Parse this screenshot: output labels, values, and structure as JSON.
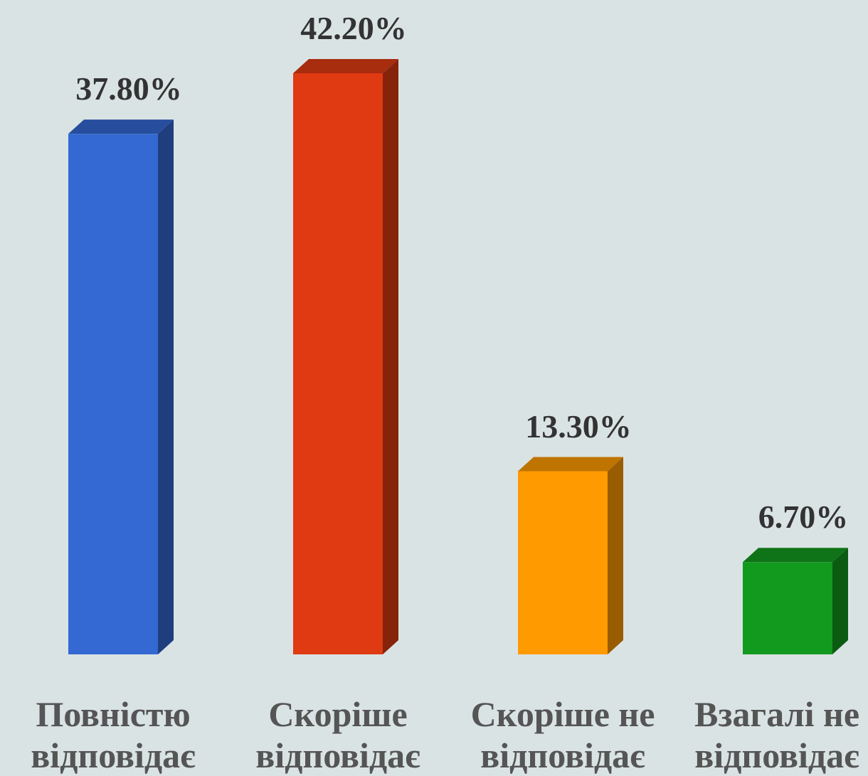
{
  "chart_data": {
    "type": "bar3d",
    "categories": [
      "Повністю відповідає",
      "Скоріше відповідає",
      "Скоріше не відповідає",
      "Взагалі не відповідає"
    ],
    "values": [
      37.8,
      42.2,
      13.3,
      6.7
    ],
    "value_labels": [
      "37.80%",
      "42.20%",
      "13.30%",
      "6.70%"
    ],
    "colors": [
      "#3468d2",
      "#e03a12",
      "#ff9a00",
      "#129a1e"
    ]
  }
}
